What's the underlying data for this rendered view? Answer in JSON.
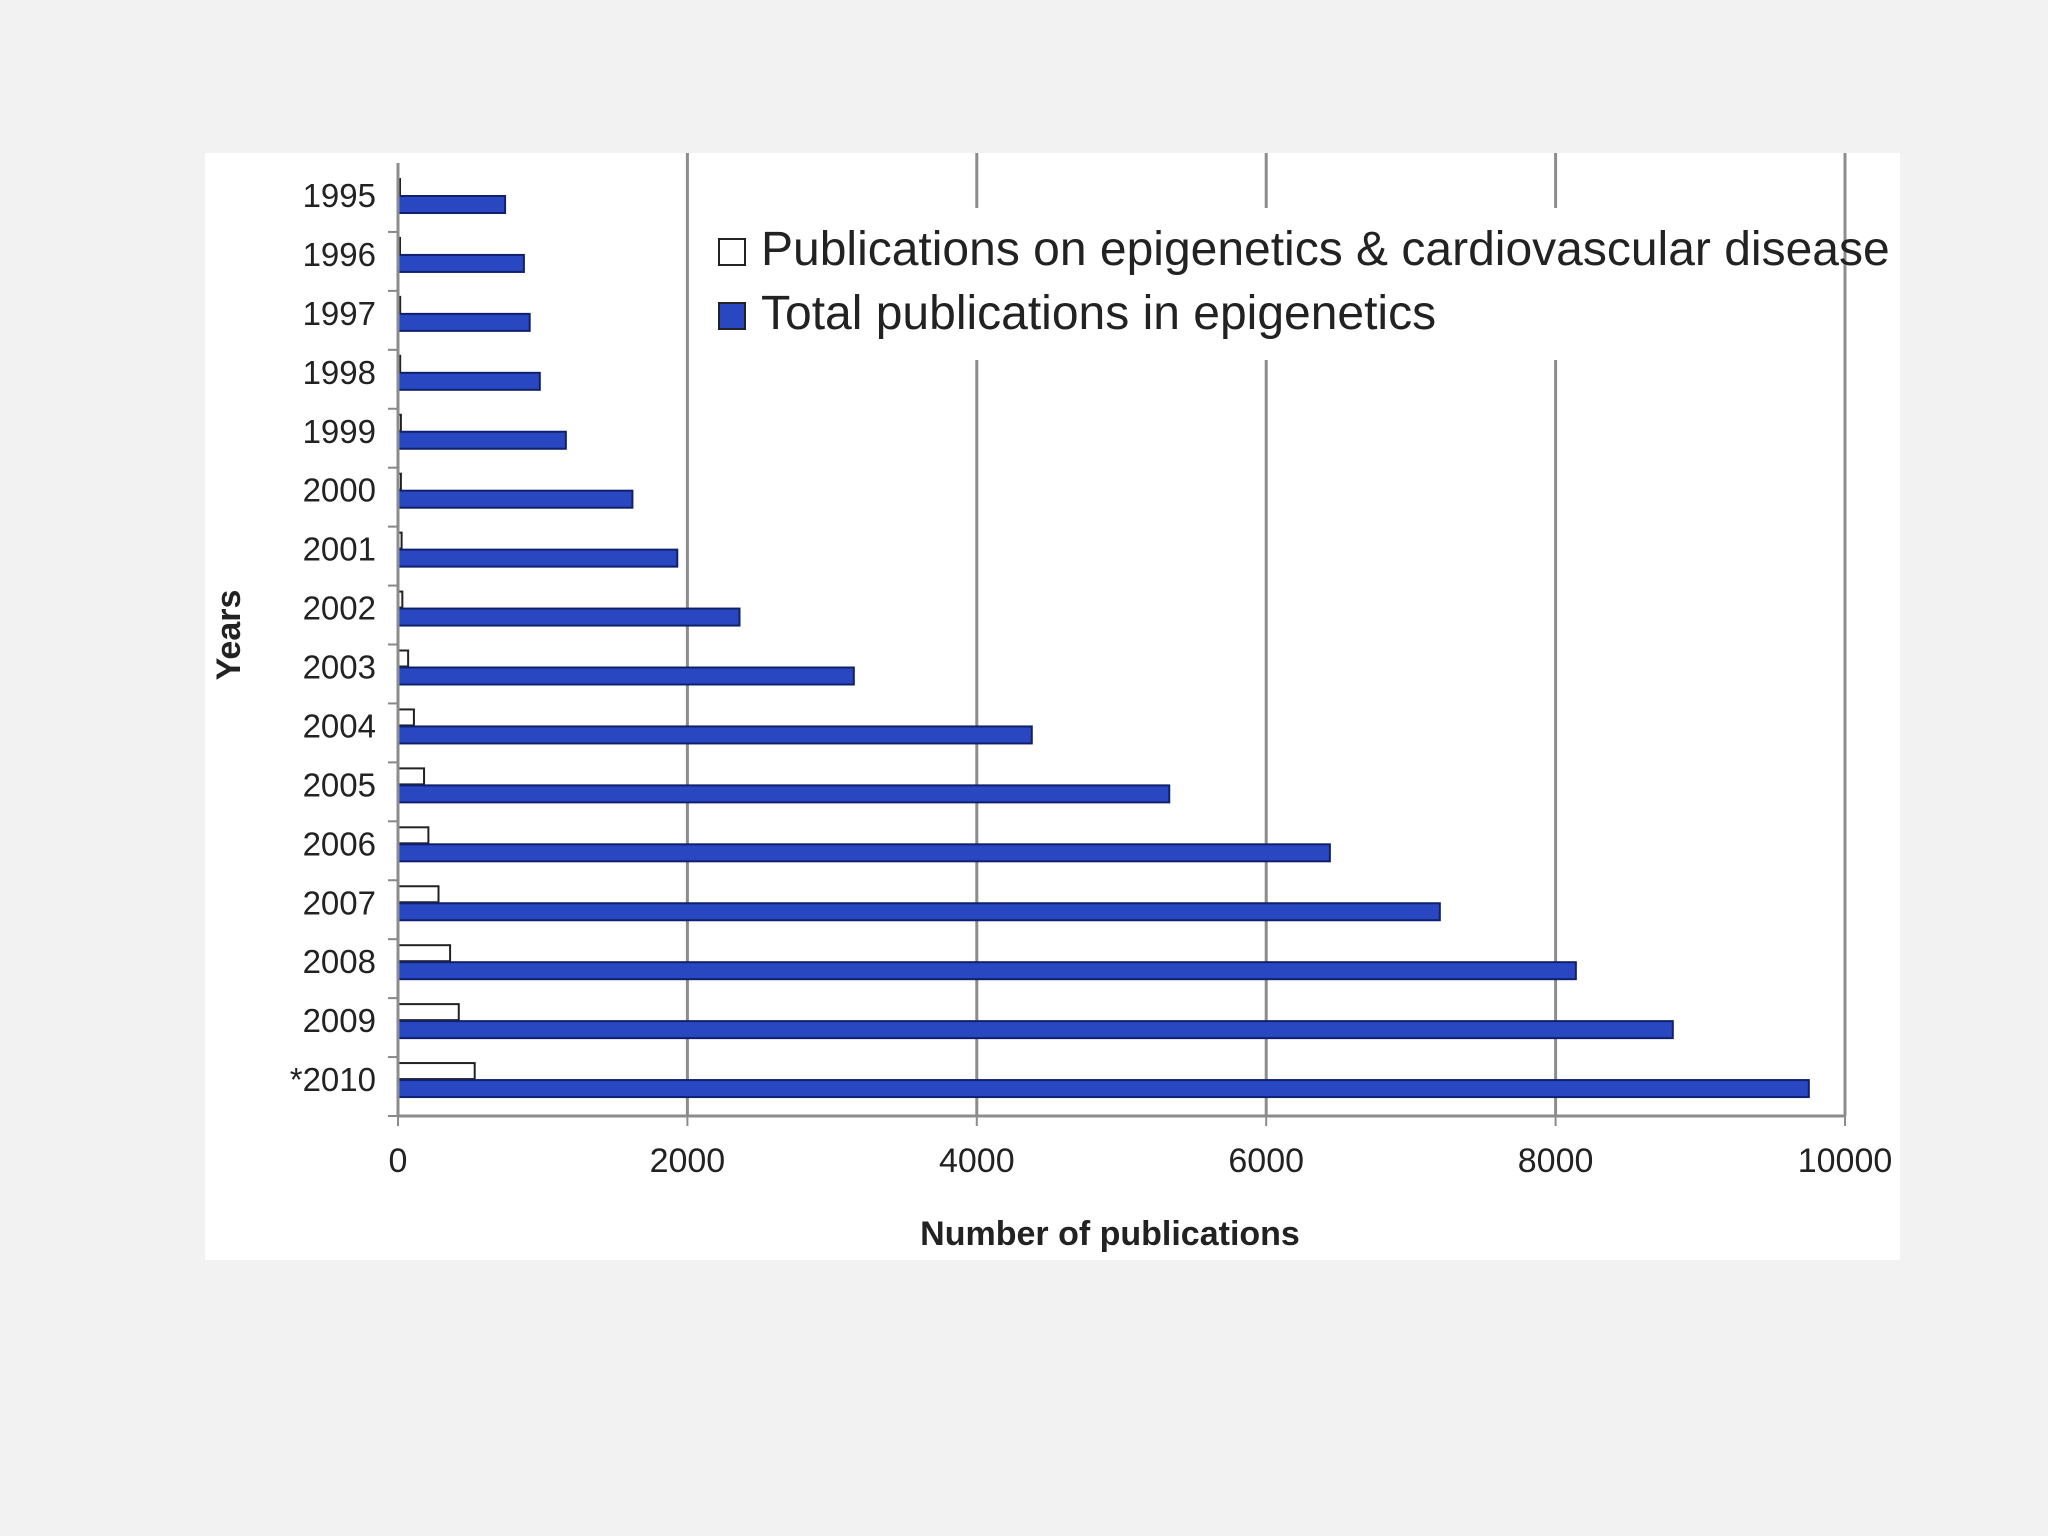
{
  "chart_data": {
    "type": "bar",
    "orientation": "horizontal",
    "title": "",
    "xlabel": "Number of publications",
    "ylabel": "Years",
    "xlim": [
      0,
      10000
    ],
    "xticks": [
      0,
      2000,
      4000,
      6000,
      8000,
      10000
    ],
    "grid": true,
    "legend_position": "top-right",
    "categories": [
      "1995",
      "1996",
      "1997",
      "1998",
      "1999",
      "2000",
      "2001",
      "2002",
      "2003",
      "2004",
      "2005",
      "2006",
      "2007",
      "2008",
      "2009",
      "*2010"
    ],
    "series": [
      {
        "name": "Publications on epigenetics & cardiovascular disease",
        "color": "#ffffff",
        "values": [
          10,
          12,
          15,
          15,
          20,
          20,
          25,
          30,
          70,
          110,
          180,
          210,
          280,
          360,
          420,
          530
        ]
      },
      {
        "name": "Total publications in epigenetics",
        "color": "#2a47c2",
        "values": [
          740,
          870,
          910,
          980,
          1160,
          1620,
          1930,
          2360,
          3150,
          4380,
          5330,
          6440,
          7200,
          8140,
          8810,
          9750
        ]
      }
    ]
  }
}
